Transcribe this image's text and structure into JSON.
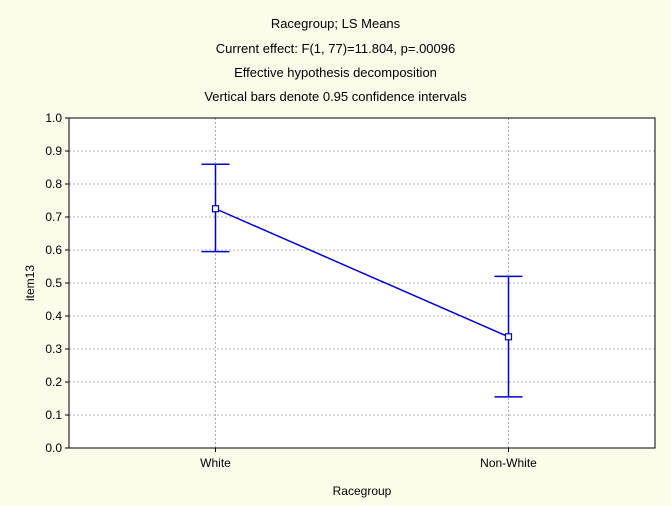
{
  "chart_data": {
    "type": "line",
    "title": "Racegroup; LS Means",
    "subtitle_lines": [
      "Current effect: F(1, 77)=11.804, p=.00096",
      "Effective hypothesis decomposition",
      "Vertical bars denote 0.95 confidence intervals"
    ],
    "xlabel": "Racegroup",
    "ylabel": "item13",
    "categories": [
      "White",
      "Non-White"
    ],
    "series": [
      {
        "values": [
          0.725,
          0.337
        ],
        "ci_lower": [
          0.595,
          0.155
        ],
        "ci_upper": [
          0.86,
          0.52
        ]
      }
    ],
    "ylim": [
      0.0,
      1.0
    ],
    "yticks": [
      "0.0",
      "0.1",
      "0.2",
      "0.3",
      "0.4",
      "0.5",
      "0.6",
      "0.7",
      "0.8",
      "0.9",
      "1.0"
    ],
    "grid": true,
    "colors": {
      "line": "#0000cc",
      "background": "#fdfbea",
      "plot_area": "#ffffff",
      "grid": "#999999"
    }
  }
}
